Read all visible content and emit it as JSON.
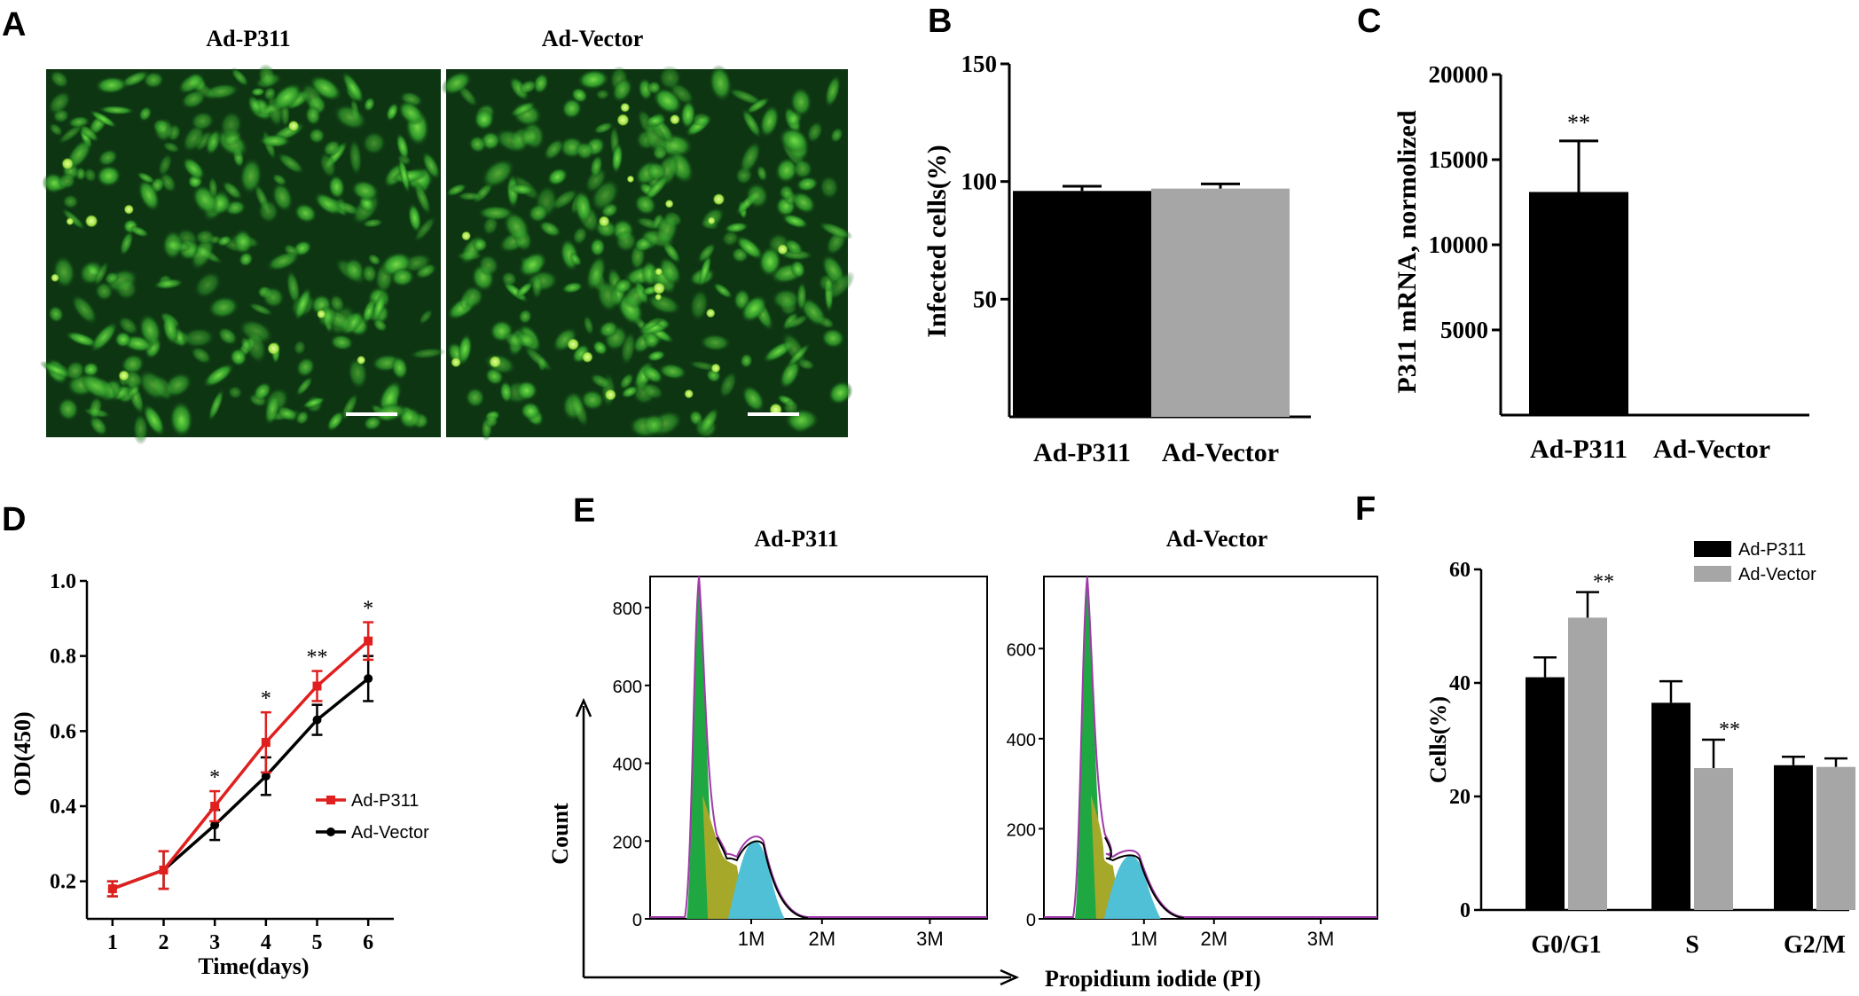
{
  "panels": {
    "A": {
      "label": "A",
      "images": [
        {
          "title": "Ad-P311"
        },
        {
          "title": "Ad-Vector"
        }
      ]
    },
    "D": {
      "label": "D"
    },
    "E": {
      "label": "E",
      "titles": [
        "Ad-P311",
        "Ad-Vector"
      ],
      "ylabel": "Count",
      "xlabel": "Propidium iodide  (PI)",
      "xticks": [
        "1M",
        "2M",
        "3M"
      ],
      "yticks_left": [
        "0",
        "200",
        "400",
        "600",
        "800"
      ],
      "yticks_right": [
        "0",
        "200",
        "400",
        "600"
      ]
    }
  },
  "colors": {
    "black_bar": "#000000",
    "gray_bar": "#a6a6a6",
    "red_line": "#e0201e",
    "g1_fill": "#1fa842",
    "s_fill": "#a6a82a",
    "g2_fill": "#4fc0d6",
    "outline": "#a03aa8"
  },
  "chart_data": [
    {
      "id": "B",
      "label": "B",
      "type": "bar",
      "categories": [
        "Ad-P311",
        "Ad-Vector"
      ],
      "values": [
        96,
        97
      ],
      "errors": [
        2,
        2
      ],
      "ylabel": "Infected cells(%)",
      "yticks": [
        50,
        100,
        150
      ],
      "ylim": [
        0,
        150
      ],
      "colors": [
        "#000000",
        "#a6a6a6"
      ]
    },
    {
      "id": "C",
      "label": "C",
      "type": "bar",
      "categories": [
        "Ad-P311",
        "Ad-Vector"
      ],
      "values": [
        13100,
        0
      ],
      "errors": [
        3000,
        0
      ],
      "significance": [
        "**",
        ""
      ],
      "ylabel": "P311 mRNA, normolized",
      "yticks": [
        5000,
        10000,
        15000,
        20000
      ],
      "ylim": [
        0,
        20000
      ],
      "colors": [
        "#000000",
        "#000000"
      ]
    },
    {
      "id": "D",
      "label": "D",
      "type": "line",
      "x": [
        1,
        2,
        3,
        4,
        5,
        6
      ],
      "series": [
        {
          "name": "Ad-P311",
          "values": [
            0.18,
            0.23,
            0.4,
            0.57,
            0.72,
            0.84
          ],
          "errors": [
            0.02,
            0.05,
            0.04,
            0.08,
            0.04,
            0.05
          ],
          "color": "#e0201e"
        },
        {
          "name": "Ad-Vector",
          "values": [
            0.18,
            0.23,
            0.35,
            0.48,
            0.63,
            0.74
          ],
          "errors": [
            0.02,
            0.05,
            0.04,
            0.05,
            0.04,
            0.06
          ],
          "color": "#000000"
        }
      ],
      "significance": [
        "",
        "",
        "*",
        "*",
        "**",
        "*"
      ],
      "xlabel": "Time(days)",
      "ylabel": "OD(450)",
      "xticks": [
        1,
        2,
        3,
        4,
        5,
        6
      ],
      "yticks": [
        "0.2",
        "0.4",
        "0.6",
        "0.8",
        "1.0"
      ],
      "xlim": [
        0.5,
        6.5
      ],
      "ylim": [
        0.1,
        1.0
      ],
      "legend": "right"
    },
    {
      "id": "F",
      "label": "F",
      "type": "bar",
      "categories": [
        "G0/G1",
        "S",
        "G2/M"
      ],
      "series": [
        {
          "name": "Ad-P311",
          "values": [
            41,
            36.5,
            25.5
          ],
          "errors": [
            3.5,
            3.8,
            1.5
          ],
          "color": "#000000"
        },
        {
          "name": "Ad-Vector",
          "values": [
            51.5,
            25,
            25.2
          ],
          "errors": [
            4.5,
            5,
            1.5
          ],
          "color": "#a6a6a6"
        }
      ],
      "significance": [
        "**",
        "**",
        ""
      ],
      "ylabel": "Cells(%)",
      "yticks": [
        0,
        20,
        40,
        60
      ],
      "ylim": [
        0,
        60
      ],
      "legend": "top-right"
    }
  ]
}
